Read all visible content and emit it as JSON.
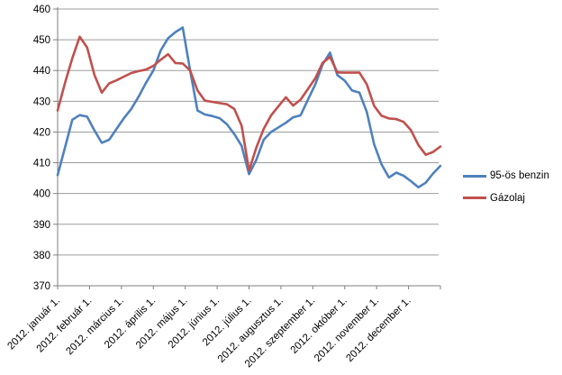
{
  "chart_data": {
    "type": "line",
    "title": "",
    "xlabel": "",
    "ylabel": "",
    "ylim": [
      370,
      460
    ],
    "y_ticks": [
      460,
      450,
      440,
      430,
      420,
      410,
      400,
      390,
      380,
      370
    ],
    "grid": true,
    "legend_position": "right",
    "x_tick_labels": [
      "2012. január 1.",
      "2012. február 1.",
      "2012. március 1.",
      "2012. április 1.",
      "2012. május 1.",
      "2012. június 1.",
      "2012. július 1.",
      "2012. augusztus 1.",
      "2012. szeptember 1.",
      "2012. október 1.",
      "2012. november 1.",
      "2012. december 1."
    ],
    "x_unit": "weekly points, Jan 1 - Dec 31 2012",
    "colors": {
      "background": "#FFFFFF",
      "gridline": "#9D9D9D",
      "axis": "#7F7F7F",
      "text": "#000000"
    },
    "series": [
      {
        "name": "95-ös benzin",
        "color": "#4F81BD",
        "values": [
          406,
          415,
          424,
          425.5,
          425,
          420.5,
          416.5,
          417.5,
          421,
          424.5,
          427.5,
          431.5,
          436,
          440,
          446.5,
          450.5,
          452.5,
          454,
          440,
          427,
          425.7,
          425.2,
          424.5,
          422.5,
          419.3,
          415.5,
          406.3,
          411,
          417.5,
          420,
          421.5,
          423,
          424.8,
          425.4,
          430.5,
          435.5,
          442,
          445.8,
          438.5,
          436.7,
          433.5,
          432.8,
          426.5,
          416,
          409.5,
          405.2,
          406.8,
          405.8,
          404,
          402,
          403.5,
          406.5,
          409
        ]
      },
      {
        "name": "Gázolaj",
        "color": "#C0504D",
        "values": [
          427,
          436,
          444,
          451,
          447.5,
          438.5,
          432.8,
          435.8,
          436.8,
          438,
          439.2,
          439.8,
          440.3,
          441.5,
          443.5,
          445.3,
          442.4,
          442.3,
          440,
          433.5,
          430.2,
          429.8,
          429.4,
          429,
          427.5,
          422,
          407.5,
          415,
          421,
          425.4,
          428.4,
          431.3,
          428.6,
          430.5,
          434,
          437.5,
          442.5,
          444.4,
          439.4,
          439.3,
          439.3,
          439.3,
          435.5,
          428.5,
          425.3,
          424.4,
          424.2,
          423.3,
          420.6,
          415.8,
          412.6,
          413.5,
          415.3
        ]
      }
    ]
  }
}
